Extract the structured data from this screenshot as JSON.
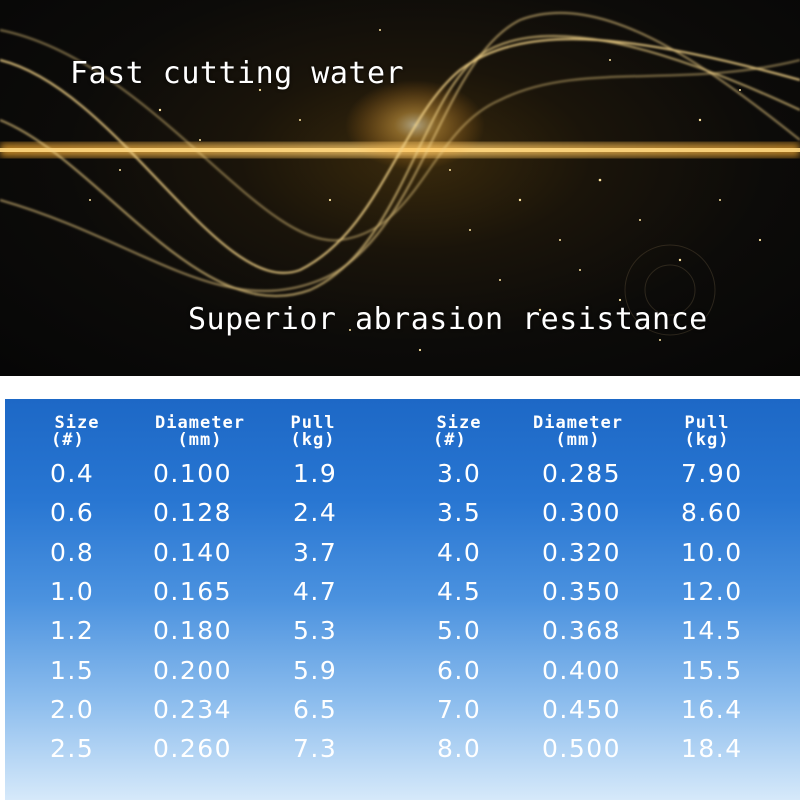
{
  "banner": {
    "headline_top": "Fast cutting water",
    "headline_bottom": "Superior abrasion resistance",
    "colors": {
      "background": "#0a0908",
      "line": "#f5d27a",
      "glow": "#ffb030"
    }
  },
  "spec_table": {
    "colors": {
      "top": "#1d68c6",
      "bottom": "#d6e9fa",
      "text": "#ffffff"
    },
    "headers": [
      {
        "title": "Size",
        "unit": "(#)"
      },
      {
        "title": "Diameter",
        "unit": "(mm)"
      },
      {
        "title": "Pull",
        "unit": "(kg)"
      },
      {
        "title": "Size",
        "unit": "(#)"
      },
      {
        "title": "Diameter",
        "unit": "(mm)"
      },
      {
        "title": "Pull",
        "unit": "(kg)"
      }
    ],
    "rows": [
      [
        "0.4",
        "0.100",
        "1.9",
        "3.0",
        "0.285",
        "7.90"
      ],
      [
        "0.6",
        "0.128",
        "2.4",
        "3.5",
        "0.300",
        "8.60"
      ],
      [
        "0.8",
        "0.140",
        "3.7",
        "4.0",
        "0.320",
        "10.0"
      ],
      [
        "1.0",
        "0.165",
        "4.7",
        "4.5",
        "0.350",
        "12.0"
      ],
      [
        "1.2",
        "0.180",
        "5.3",
        "5.0",
        "0.368",
        "14.5"
      ],
      [
        "1.5",
        "0.200",
        "5.9",
        "6.0",
        "0.400",
        "15.5"
      ],
      [
        "2.0",
        "0.234",
        "6.5",
        "7.0",
        "0.450",
        "16.4"
      ],
      [
        "2.5",
        "0.260",
        "7.3",
        "8.0",
        "0.500",
        "18.4"
      ]
    ]
  }
}
